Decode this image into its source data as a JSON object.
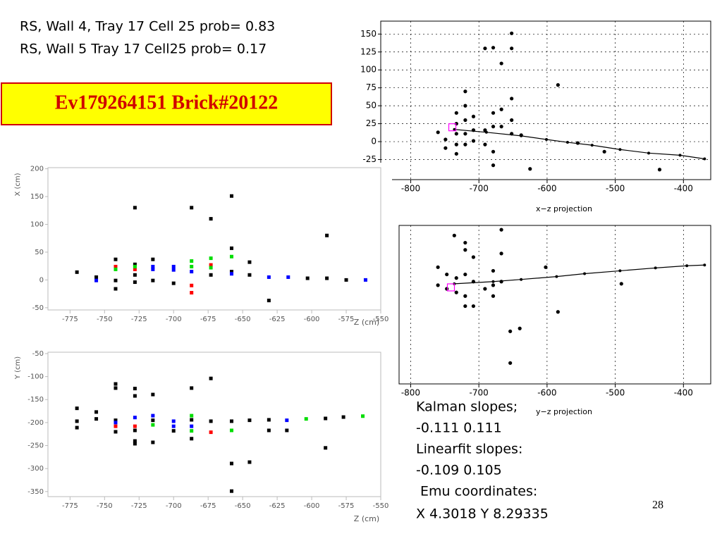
{
  "header_lines": [
    "RS, Wall  4, Tray 17 Cell 25 prob=  0.83",
    "RS, Wall  5 Tray 17 Cell25  prob=  0.17"
  ],
  "event_box": "Ev179264151 Brick#20122",
  "notes": [
    "Kalman slopes;",
    "-0.111  0.111",
    "Linearfit slopes:",
    "-0.109 0.105",
    " Emu coordinates:",
    "X 4.3018 Y 8.29335"
  ],
  "page_number": "28",
  "chart_data": [
    {
      "type": "scatter",
      "xlabel": "x−z projection",
      "xlim": [
        -844,
        -360
      ],
      "ylim": [
        -53,
        168
      ],
      "xticks": [
        -800,
        -700,
        -600,
        -500,
        -400
      ],
      "yticks": [
        -25,
        0,
        25,
        50,
        75,
        100,
        125,
        150
      ],
      "grid": true,
      "series": [
        {
          "color": "#000000",
          "marker": "circle",
          "x": [
            -749,
            -749,
            -760,
            -733,
            -733,
            -733,
            -733,
            -733,
            -720,
            -720,
            -720,
            -720,
            -720,
            -708,
            -708,
            -708,
            -691,
            -691,
            -691,
            -679,
            -679,
            -679,
            -679,
            -679,
            -667,
            -667,
            -667,
            -652,
            -652,
            -652,
            -652,
            -652,
            -638,
            -625,
            -584,
            -555,
            -516,
            -435
          ],
          "values": [
            -9,
            3,
            13,
            40,
            25,
            11,
            -4,
            -17,
            70,
            50,
            30,
            11,
            -4,
            35,
            16,
            1,
            130,
            16,
            -4,
            131,
            40,
            21,
            -14,
            -33,
            109,
            45,
            21,
            151,
            130,
            60,
            30,
            11,
            9,
            -38,
            79,
            -2,
            -14,
            -39
          ]
        },
        {
          "color": "#000000",
          "marker": "line",
          "x": [
            -736,
            -689,
            -638,
            -601,
            -570,
            -534,
            -493,
            -451,
            -405,
            -369
          ],
          "values": [
            17,
            13,
            8,
            3,
            -1,
            -5,
            -11,
            -16,
            -19,
            -24
          ]
        },
        {
          "color": "#ff00ff",
          "marker": "open-square",
          "x": [
            -739
          ],
          "values": [
            20
          ]
        }
      ]
    },
    {
      "type": "scatter",
      "xlabel": "y−z projection",
      "xlim": [
        -817,
        -360
      ],
      "ylim": [
        -139,
        81
      ],
      "xticks": [
        -800,
        -700,
        -600,
        -500,
        -400
      ],
      "grid": true,
      "series": [
        {
          "color": "#000000",
          "marker": "circle",
          "x": [
            -760,
            -760,
            -747,
            -747,
            -736,
            -733,
            -733,
            -720,
            -720,
            -720,
            -720,
            -720,
            -708,
            -708,
            -708,
            -691,
            -679,
            -679,
            -679,
            -667,
            -667,
            -667,
            -654,
            -654,
            -640,
            -602,
            -584,
            -491
          ],
          "values": [
            23,
            -2,
            13,
            -7,
            67,
            8,
            -12,
            57,
            47,
            13,
            -17,
            -31,
            37,
            3,
            -31,
            -7,
            18,
            -2,
            -17,
            75,
            42,
            3,
            -66,
            -110,
            -62,
            23,
            -39,
            0
          ]
        },
        {
          "color": "#000000",
          "marker": "line",
          "x": [
            -736,
            -679,
            -638,
            -586,
            -545,
            -493,
            -441,
            -395,
            -369
          ],
          "values": [
            0,
            3,
            6,
            10,
            14,
            18,
            22,
            25,
            26
          ]
        },
        {
          "color": "#ff00ff",
          "marker": "open-square",
          "x": [
            -741
          ],
          "values": [
            -5
          ]
        }
      ]
    },
    {
      "type": "scatter",
      "xlabel": "Z (cm)",
      "ylabel": "X (cm)",
      "xlim": [
        -791,
        -550
      ],
      "ylim": [
        -54,
        202
      ],
      "xticks": [
        -775,
        -750,
        -725,
        -700,
        -675,
        -650,
        -625,
        -600,
        -575,
        -550
      ],
      "yticks": [
        -50,
        0,
        50,
        100,
        150,
        200
      ],
      "grid": false,
      "series": [
        {
          "color": "#000000",
          "marker": "square",
          "x": [
            -770,
            -756,
            -742,
            -742,
            -742,
            -728,
            -728,
            -728,
            -728,
            -715,
            -715,
            -700,
            -687,
            -673,
            -673,
            -658,
            -658,
            -658,
            -645,
            -645,
            -631,
            -603,
            -589,
            -589,
            -575
          ],
          "values": [
            14,
            5,
            37,
            -1,
            -16,
            130,
            28,
            9,
            -4,
            37,
            -1,
            -6,
            130,
            110,
            9,
            151,
            57,
            15,
            32,
            9,
            -37,
            3,
            80,
            3,
            0
          ]
        },
        {
          "color": "#ff0000",
          "marker": "square",
          "x": [
            -742,
            -728,
            -687,
            -687,
            -673
          ],
          "values": [
            24,
            19,
            -10,
            -23,
            27
          ]
        },
        {
          "color": "#00dd00",
          "marker": "square",
          "x": [
            -742,
            -728,
            -687,
            -687,
            -673,
            -673,
            -658
          ],
          "values": [
            19,
            24,
            34,
            24,
            39,
            22,
            42
          ]
        },
        {
          "color": "#0000ff",
          "marker": "square",
          "x": [
            -756,
            -715,
            -715,
            -700,
            -700,
            -687,
            -658,
            -631,
            -617,
            -561
          ],
          "values": [
            -1,
            24,
            19,
            24,
            18,
            15,
            11,
            5,
            5,
            0
          ]
        }
      ]
    },
    {
      "type": "scatter",
      "xlabel": "Z (cm)",
      "ylabel": "Y (cm)",
      "xlim": [
        -791,
        -550
      ],
      "ylim": [
        -361,
        -47
      ],
      "xticks": [
        -775,
        -750,
        -725,
        -700,
        -675,
        -650,
        -625,
        -600,
        -575,
        -550
      ],
      "yticks": [
        -350,
        -300,
        -250,
        -200,
        -150,
        -100,
        -50
      ],
      "grid": false,
      "series": [
        {
          "color": "#000000",
          "marker": "square",
          "x": [
            -770,
            -770,
            -770,
            -756,
            -756,
            -742,
            -742,
            -742,
            -742,
            -728,
            -728,
            -728,
            -728,
            -728,
            -715,
            -715,
            -715,
            -700,
            -687,
            -687,
            -687,
            -673,
            -673,
            -658,
            -658,
            -658,
            -645,
            -645,
            -631,
            -631,
            -618,
            -590,
            -590,
            -577
          ],
          "values": [
            -169,
            -197,
            -211,
            -177,
            -192,
            -116,
            -125,
            -195,
            -220,
            -126,
            -142,
            -240,
            -246,
            -217,
            -139,
            -243,
            -195,
            -218,
            -125,
            -235,
            -194,
            -104,
            -197,
            -197,
            -289,
            -349,
            -195,
            -286,
            -194,
            -217,
            -217,
            -191,
            -255,
            -188
          ]
        },
        {
          "color": "#ff0000",
          "marker": "square",
          "x": [
            -742,
            -728,
            -673
          ],
          "values": [
            -208,
            -208,
            -221
          ]
        },
        {
          "color": "#00dd00",
          "marker": "square",
          "x": [
            -715,
            -687,
            -687,
            -658,
            -604,
            -563
          ],
          "values": [
            -205,
            -185,
            -218,
            -217,
            -192,
            -186
          ]
        },
        {
          "color": "#0000ff",
          "marker": "square",
          "x": [
            -742,
            -728,
            -715,
            -700,
            -700,
            -687,
            -618
          ],
          "values": [
            -200,
            -189,
            -185,
            -197,
            -208,
            -208,
            -195
          ]
        }
      ]
    }
  ]
}
